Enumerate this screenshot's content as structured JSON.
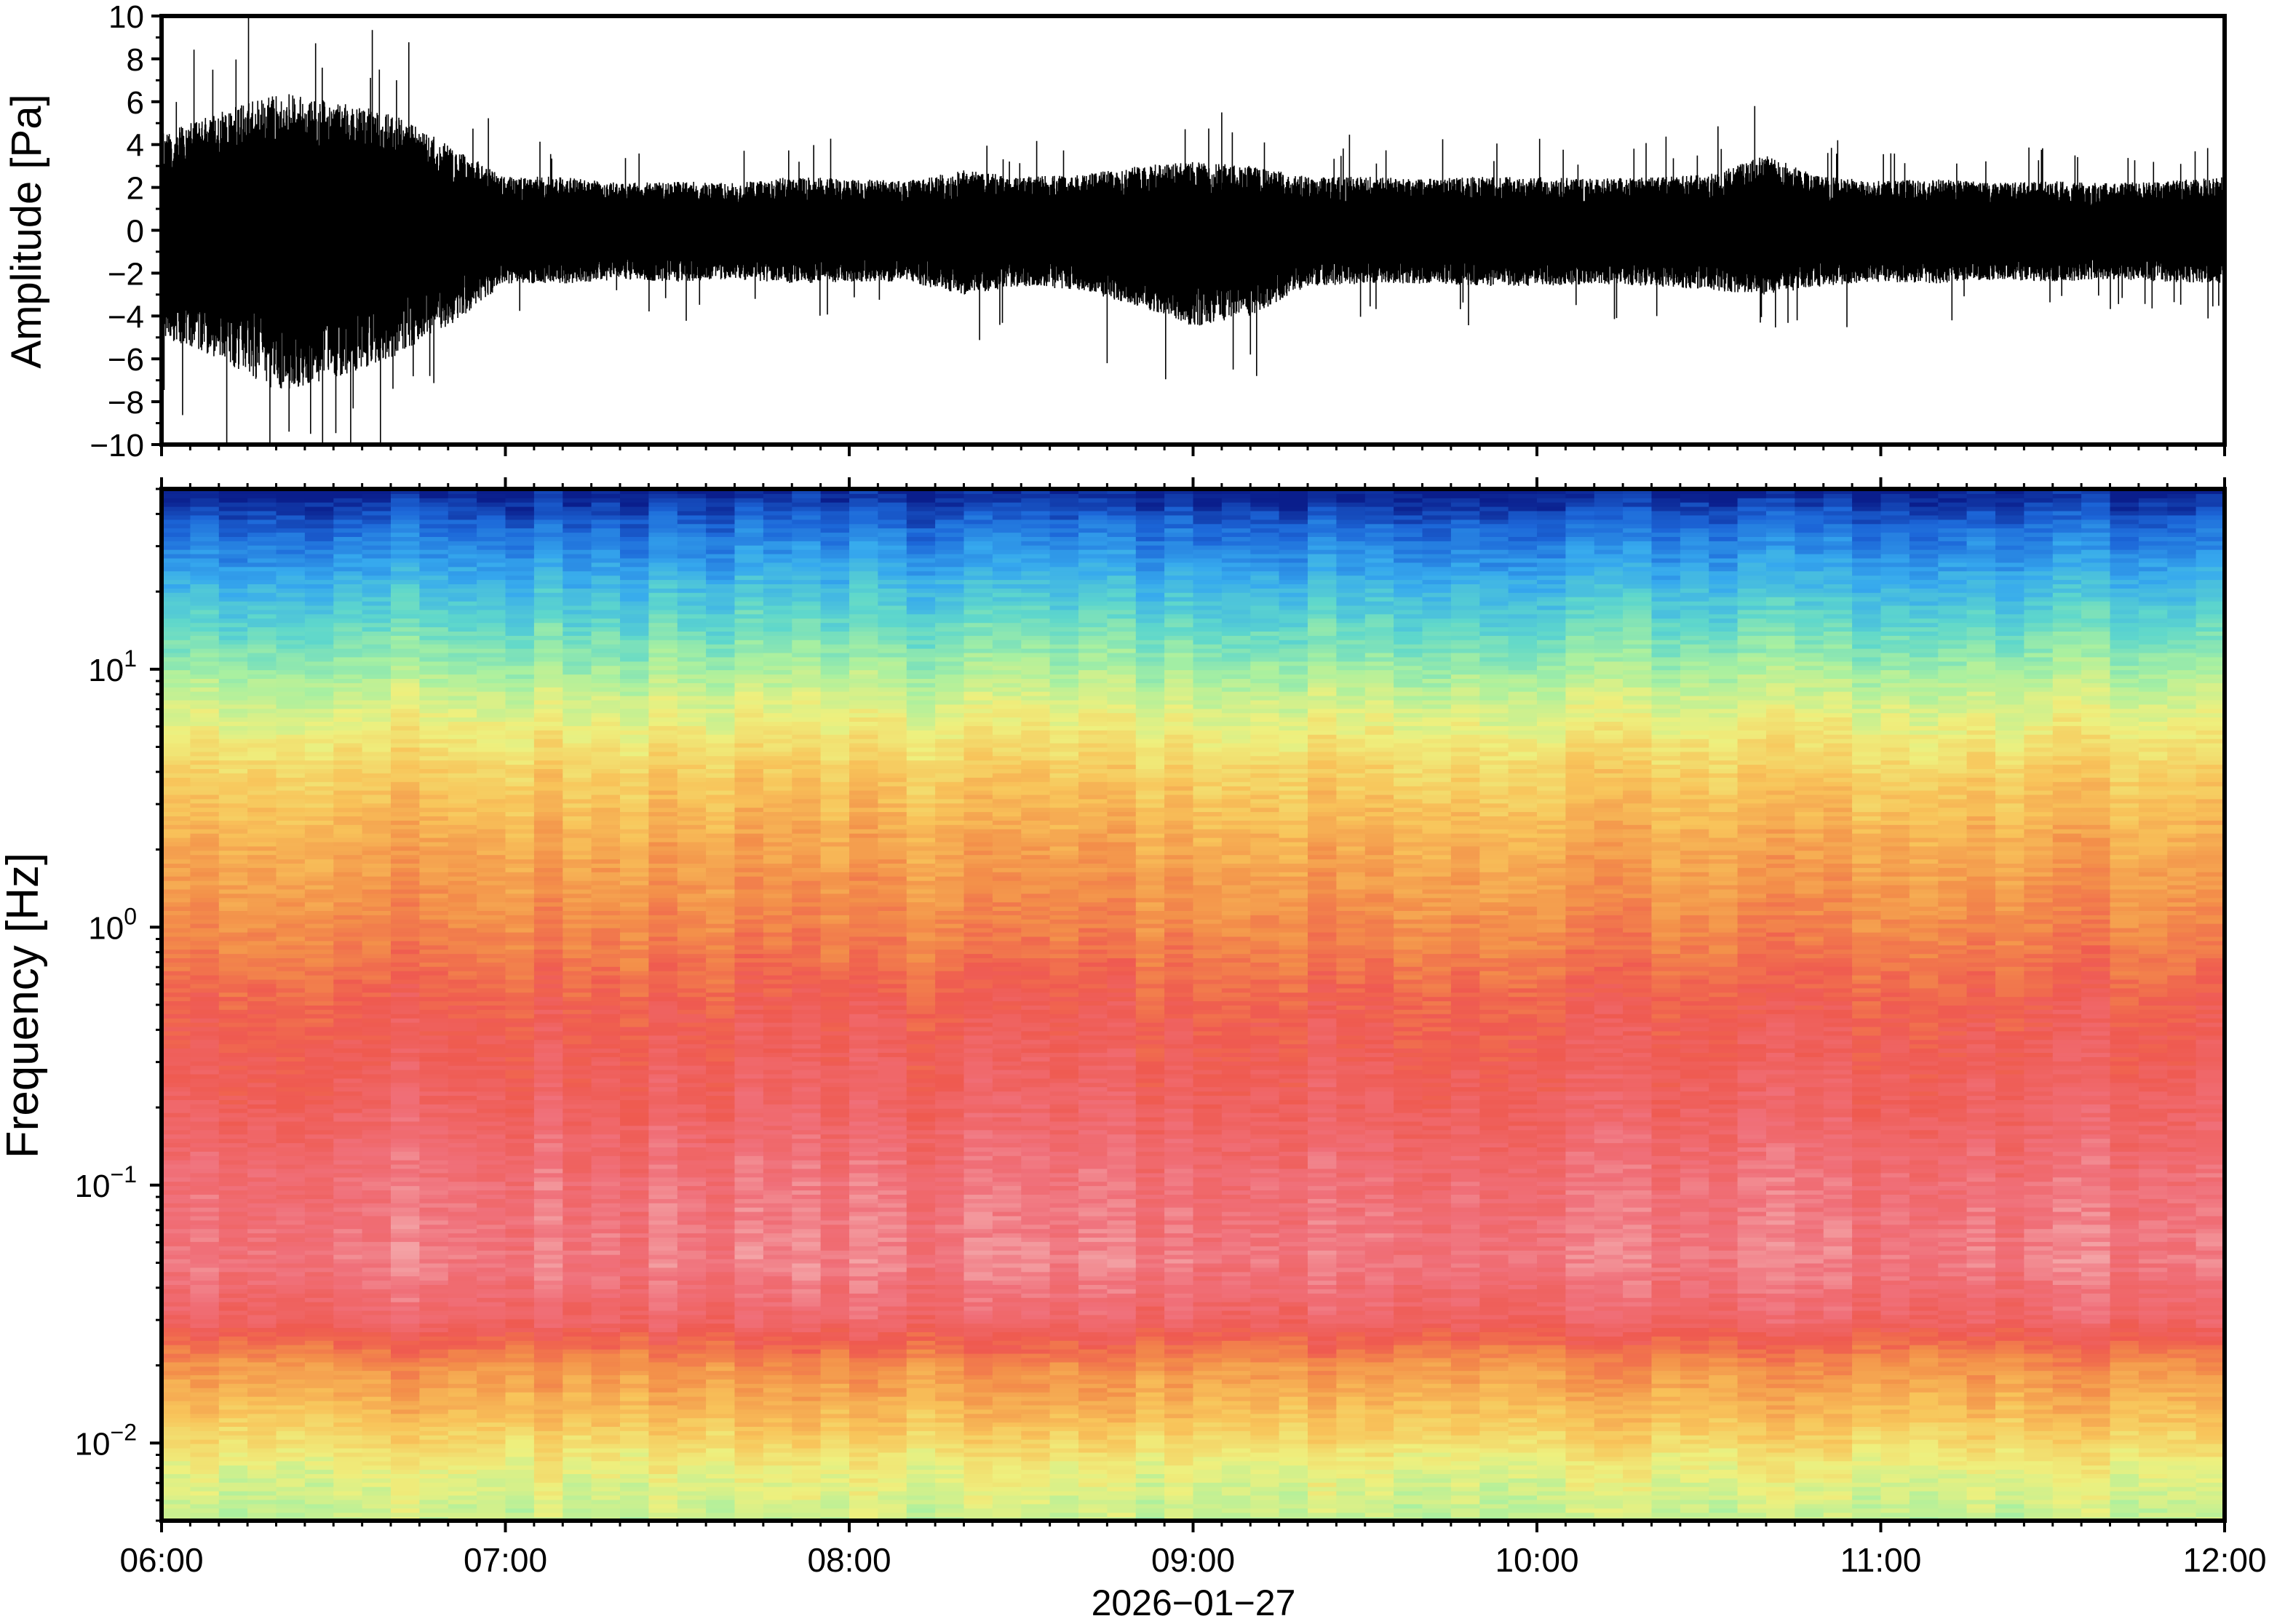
{
  "chart_data": [
    {
      "type": "line",
      "title": "",
      "xlabel": "",
      "ylabel": "Amplitude [Pa]",
      "ylim": [
        -10,
        10
      ],
      "y_ticks": [
        "10",
        "8",
        "6",
        "4",
        "2",
        "0",
        "−2",
        "−4",
        "−6",
        "−8",
        "−10"
      ],
      "y_tick_values": [
        10,
        8,
        6,
        4,
        2,
        0,
        -2,
        -4,
        -6,
        -8,
        -10
      ],
      "grid": false,
      "series": [
        {
          "color": "#000000",
          "x": [
            "06:00",
            "06:10",
            "06:20",
            "06:30",
            "06:40",
            "06:50",
            "07:00",
            "07:10",
            "07:20",
            "07:30",
            "07:40",
            "07:50",
            "08:00",
            "08:10",
            "08:20",
            "08:30",
            "08:40",
            "08:50",
            "09:00",
            "09:10",
            "09:20",
            "09:30",
            "09:40",
            "09:50",
            "10:00",
            "10:10",
            "10:20",
            "10:30",
            "10:40",
            "10:50",
            "11:00",
            "11:10",
            "11:20",
            "11:30",
            "11:40",
            "11:50",
            "12:00"
          ],
          "envelope_max": [
            4.5,
            5.5,
            6.5,
            6,
            5.5,
            4,
            2.5,
            2.5,
            2.2,
            2.3,
            2.2,
            2.5,
            2.4,
            2.3,
            2.8,
            2.5,
            2.6,
            3,
            3.2,
            3,
            2.5,
            2.5,
            2.4,
            2.5,
            2.5,
            2.4,
            2.5,
            2.6,
            3.5,
            2.5,
            2.3,
            2.4,
            2.2,
            2.3,
            2.2,
            2.3,
            2.5
          ],
          "envelope_min": [
            -5,
            -6,
            -7.5,
            -7,
            -6,
            -4.5,
            -2.5,
            -2.5,
            -2.3,
            -2.4,
            -2.3,
            -2.5,
            -2.4,
            -2.4,
            -3,
            -2.6,
            -2.8,
            -3.5,
            -4.5,
            -4,
            -2.6,
            -2.5,
            -2.5,
            -2.6,
            -2.6,
            -2.5,
            -2.6,
            -2.8,
            -3,
            -2.6,
            -2.4,
            -2.5,
            -2.3,
            -2.4,
            -2.3,
            -2.4,
            -2.5
          ],
          "peaks": [
            {
              "x": "06:33",
              "y": -10
            },
            {
              "x": "06:26",
              "y": -9.5
            },
            {
              "x": "06:38",
              "y": 7.5
            },
            {
              "x": "06:41",
              "y": 7
            },
            {
              "x": "09:05",
              "y": 5.5
            },
            {
              "x": "09:07",
              "y": -6.5
            },
            {
              "x": "09:10",
              "y": -5.8
            },
            {
              "x": "10:38",
              "y": 5.8
            },
            {
              "x": "08:45",
              "y": -6.2
            }
          ]
        }
      ]
    },
    {
      "type": "heatmap",
      "title": "",
      "xlabel": "2026−01−27",
      "ylabel": "Frequency [Hz]",
      "y_scale": "log",
      "ylim": [
        0.005,
        50
      ],
      "y_ticks": [
        {
          "value": 10,
          "base": "10",
          "exp": "1"
        },
        {
          "value": 1,
          "base": "10",
          "exp": "0"
        },
        {
          "value": 0.1,
          "base": "10",
          "exp": "−1"
        },
        {
          "value": 0.01,
          "base": "10",
          "exp": "−2"
        }
      ],
      "x_ticks": [
        "06:00",
        "07:00",
        "08:00",
        "09:00",
        "10:00",
        "11:00",
        "12:00"
      ],
      "xlim": [
        "06:00",
        "12:00"
      ],
      "colormap": [
        "#0a1e8c",
        "#1c66d8",
        "#36a9ee",
        "#5ed7cc",
        "#a9f0a0",
        "#eef07e",
        "#f8c45a",
        "#f3904a",
        "#ef5a50",
        "#f0707a",
        "#f5b6b6"
      ],
      "frequency_profile": [
        {
          "freq": 50,
          "level": 0
        },
        {
          "freq": 35,
          "level": 0.12
        },
        {
          "freq": 20,
          "level": 0.25
        },
        {
          "freq": 12,
          "level": 0.36
        },
        {
          "freq": 7,
          "level": 0.48
        },
        {
          "freq": 4,
          "level": 0.58
        },
        {
          "freq": 2,
          "level": 0.66
        },
        {
          "freq": 1,
          "level": 0.72
        },
        {
          "freq": 0.5,
          "level": 0.8
        },
        {
          "freq": 0.2,
          "level": 0.85
        },
        {
          "freq": 0.1,
          "level": 0.9
        },
        {
          "freq": 0.05,
          "level": 0.92
        },
        {
          "freq": 0.03,
          "level": 0.86
        },
        {
          "freq": 0.02,
          "level": 0.7
        },
        {
          "freq": 0.012,
          "level": 0.6
        },
        {
          "freq": 0.008,
          "level": 0.5
        },
        {
          "freq": 0.005,
          "level": 0.44
        }
      ]
    }
  ]
}
